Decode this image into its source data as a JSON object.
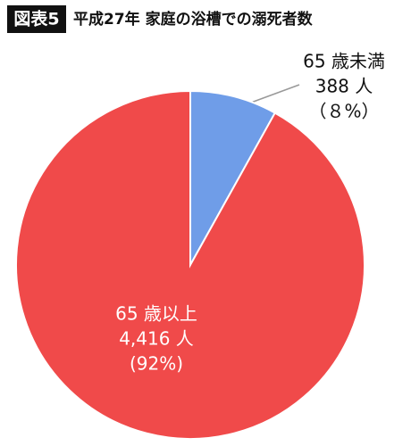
{
  "chart_data": {
    "type": "pie",
    "figure_label": "図表5",
    "title": "平成27年 家庭の浴槽での溺死者数",
    "categories": [
      "65 歳未満",
      "65 歳以上"
    ],
    "values": [
      388,
      4416
    ],
    "value_labels": [
      "388 人",
      "4,416 人"
    ],
    "percent_labels": [
      "（８%）",
      "(92%)"
    ],
    "colors": [
      "#6f9de8",
      "#f04a4a"
    ]
  }
}
